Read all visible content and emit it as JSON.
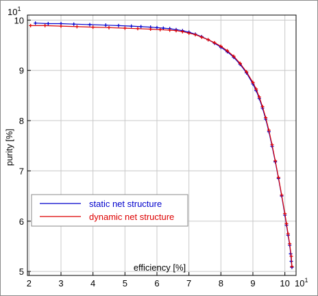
{
  "chart_data": {
    "type": "line",
    "title": "",
    "xlabel": "efficiency [%]",
    "ylabel": "purity [%]",
    "x_exponent_label": "10",
    "x_exponent_power": "1",
    "y_exponent_label": "10",
    "y_exponent_power": "1",
    "xlim": [
      1.95,
      10.35
    ],
    "ylim": [
      4.92,
      10.1
    ],
    "x_ticks": [
      2,
      3,
      4,
      5,
      6,
      7,
      8,
      9,
      10
    ],
    "y_ticks": [
      5,
      6,
      7,
      8,
      9,
      10
    ],
    "grid": true,
    "legend_position": "lower-left",
    "series": [
      {
        "name": "static net structure",
        "color": "#0000cc",
        "x": [
          2.2,
          2.6,
          3.0,
          3.4,
          3.9,
          4.4,
          4.8,
          5.2,
          5.5,
          5.8,
          6.0,
          6.2,
          6.4,
          6.6,
          6.8,
          7.0,
          7.2,
          7.4,
          7.6,
          7.8,
          8.0,
          8.2,
          8.4,
          8.6,
          8.8,
          9.0,
          9.1,
          9.2,
          9.3,
          9.4,
          9.5,
          9.6,
          9.7,
          9.8,
          9.9,
          10.0,
          10.05,
          10.1,
          10.15,
          10.18,
          10.2,
          10.22
        ],
        "y": [
          9.94,
          9.93,
          9.93,
          9.92,
          9.91,
          9.9,
          9.89,
          9.88,
          9.87,
          9.86,
          9.85,
          9.84,
          9.83,
          9.81,
          9.79,
          9.76,
          9.72,
          9.67,
          9.61,
          9.54,
          9.46,
          9.37,
          9.26,
          9.12,
          8.95,
          8.73,
          8.6,
          8.44,
          8.25,
          8.03,
          7.78,
          7.49,
          7.18,
          6.85,
          6.5,
          6.12,
          5.92,
          5.72,
          5.52,
          5.35,
          5.2,
          5.08
        ]
      },
      {
        "name": "dynamic net structure",
        "color": "#dd0000",
        "x": [
          2.05,
          2.5,
          3.0,
          3.5,
          4.0,
          4.5,
          5.0,
          5.4,
          5.8,
          6.1,
          6.4,
          6.6,
          6.8,
          7.0,
          7.2,
          7.4,
          7.6,
          7.8,
          8.0,
          8.2,
          8.4,
          8.6,
          8.8,
          9.0,
          9.1,
          9.2,
          9.3,
          9.4,
          9.5,
          9.6,
          9.7,
          9.8,
          9.9,
          10.0,
          10.05,
          10.1,
          10.15,
          10.2,
          10.22
        ],
        "y": [
          9.89,
          9.89,
          9.88,
          9.87,
          9.86,
          9.85,
          9.84,
          9.83,
          9.82,
          9.81,
          9.8,
          9.79,
          9.77,
          9.74,
          9.71,
          9.66,
          9.61,
          9.55,
          9.48,
          9.39,
          9.28,
          9.14,
          8.97,
          8.76,
          8.63,
          8.47,
          8.28,
          8.06,
          7.81,
          7.52,
          7.2,
          6.87,
          6.52,
          6.15,
          5.95,
          5.75,
          5.55,
          5.3,
          5.1
        ]
      }
    ]
  }
}
